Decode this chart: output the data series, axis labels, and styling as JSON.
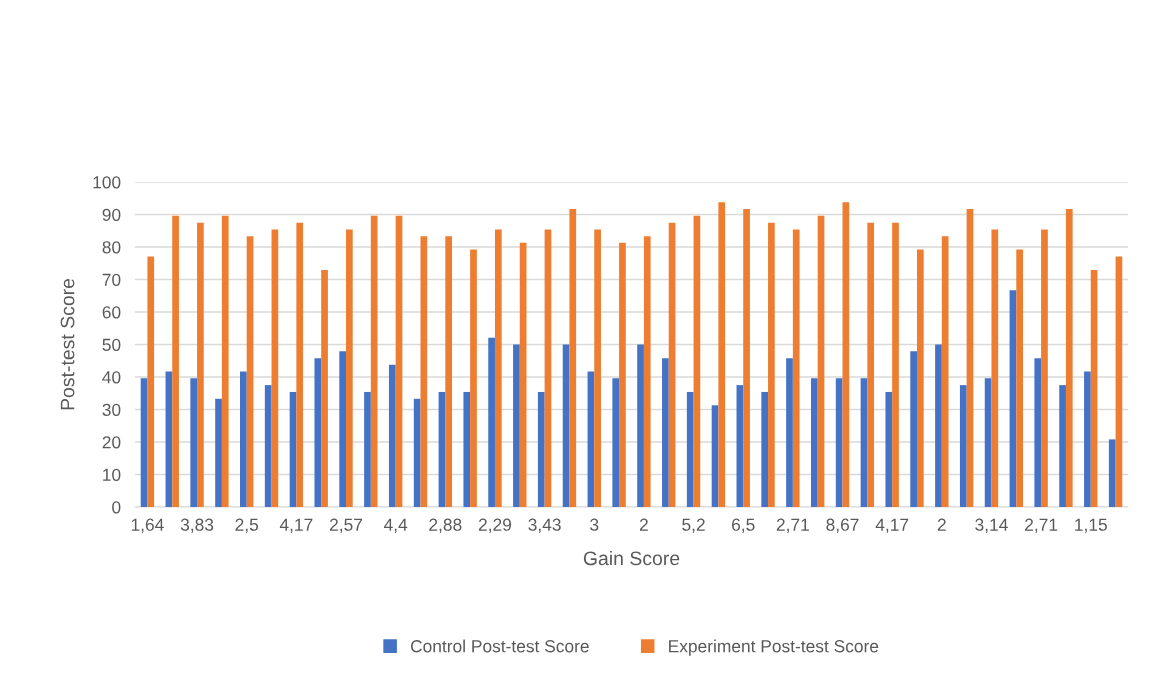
{
  "chart_data": {
    "type": "bar",
    "xlabel": "Gain Score",
    "ylabel": "Post-test Score",
    "categories": [
      "1,64",
      null,
      "3,83",
      null,
      "2,5",
      null,
      "4,17",
      null,
      "2,57",
      null,
      "4,4",
      null,
      "2,88",
      null,
      "2,29",
      null,
      "3,43",
      null,
      "3",
      null,
      "2",
      null,
      "5,2",
      null,
      "6,5",
      null,
      "2,71",
      null,
      "8,67",
      null,
      "4,17",
      null,
      "2",
      null,
      "3,14",
      null,
      "2,71",
      null,
      "1,15",
      null
    ],
    "series": [
      {
        "name": "Control Post-test Score",
        "color": "#4472c4",
        "values": [
          39.6,
          41.7,
          39.6,
          33.3,
          41.7,
          37.5,
          35.4,
          45.8,
          47.9,
          35.4,
          43.8,
          33.3,
          35.4,
          35.4,
          52.1,
          50,
          35.4,
          50,
          41.7,
          39.6,
          50,
          45.8,
          35.4,
          31.3,
          37.5,
          35.4,
          45.8,
          39.6,
          39.6,
          39.6,
          35.4,
          47.9,
          50,
          37.5,
          39.6,
          66.7,
          45.8,
          37.5,
          41.7,
          20.8
        ]
      },
      {
        "name": "Experiment Post-test Score",
        "color": "#ed7d31",
        "values": [
          77.1,
          89.6,
          87.5,
          89.6,
          83.3,
          85.4,
          87.5,
          72.9,
          85.4,
          89.6,
          89.6,
          83.3,
          83.3,
          79.2,
          85.4,
          81.3,
          85.4,
          91.7,
          85.4,
          81.3,
          83.3,
          87.5,
          89.6,
          93.8,
          91.7,
          87.5,
          85.4,
          89.6,
          93.8,
          87.5,
          87.5,
          79.2,
          83.3,
          91.7,
          85.4,
          79.2,
          85.4,
          91.7,
          72.9,
          77.1
        ]
      }
    ],
    "ylim": [
      0,
      100
    ],
    "yticks": [
      0,
      10,
      20,
      30,
      40,
      50,
      60,
      70,
      80,
      90,
      100
    ],
    "grid": "y",
    "legend": "bottom"
  }
}
